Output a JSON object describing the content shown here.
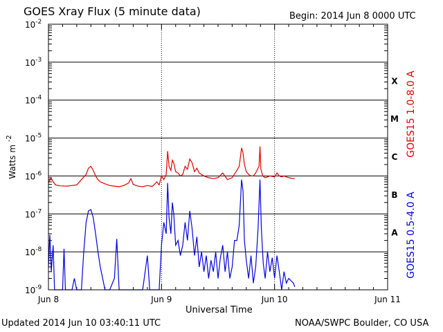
{
  "header": {
    "title": "GOES Xray Flux (5 minute data)",
    "begin": "Begin:  2014 Jun 8 0000 UTC"
  },
  "footer": {
    "updated": "Updated 2014 Jun 10 03:40:11 UTC",
    "credit": "NOAA/SWPC Boulder, CO USA"
  },
  "colors": {
    "long": "#e00000",
    "short": "#0000e0",
    "grid": "#000000"
  },
  "chart_data": {
    "type": "line",
    "title": "GOES Xray Flux (5 minute data)",
    "xlabel": "Universal Time",
    "ylabel": "Watts m-2",
    "ylabel_base": "Watts m",
    "ylabel_exp": "-2",
    "yscale": "log",
    "ylim": [
      1e-09,
      0.01
    ],
    "xlim": [
      0,
      72
    ],
    "x_unit": "hours since 2014 Jun 8 0000 UTC",
    "x_tick_labels": [
      {
        "x": 0,
        "label": "Jun 8"
      },
      {
        "x": 24,
        "label": "Jun 9"
      },
      {
        "x": 48,
        "label": "Jun 10"
      },
      {
        "x": 72,
        "label": "Jun 11"
      }
    ],
    "y_tick_labels": [
      {
        "exp": -2,
        "base": "10",
        "sup": "-2"
      },
      {
        "exp": -3,
        "base": "10",
        "sup": "-3"
      },
      {
        "exp": -4,
        "base": "10",
        "sup": "-4"
      },
      {
        "exp": -5,
        "base": "10",
        "sup": "-5"
      },
      {
        "exp": -6,
        "base": "10",
        "sup": "-6"
      },
      {
        "exp": -7,
        "base": "10",
        "sup": "-7"
      },
      {
        "exp": -8,
        "base": "10",
        "sup": "-8"
      },
      {
        "exp": -9,
        "base": "10",
        "sup": "-9"
      }
    ],
    "flare_classes": [
      {
        "label": "X",
        "exp": -3.5
      },
      {
        "label": "M",
        "exp": -4.5
      },
      {
        "label": "C",
        "exp": -5.5
      },
      {
        "label": "B",
        "exp": -6.5
      },
      {
        "label": "A",
        "exp": -7.5
      }
    ],
    "grid": true,
    "series": [
      {
        "name": "GOES15 1.0-8.0 A",
        "points": [
          [
            0,
            6.5e-07
          ],
          [
            0.5,
            9e-07
          ],
          [
            1.0,
            7e-07
          ],
          [
            1.5,
            5.8e-07
          ],
          [
            2.5,
            5.5e-07
          ],
          [
            4,
            5.4e-07
          ],
          [
            5,
            5.6e-07
          ],
          [
            6,
            5.8e-07
          ],
          [
            7,
            8e-07
          ],
          [
            8,
            1.1e-06
          ],
          [
            8.5,
            1.6e-06
          ],
          [
            9,
            1.8e-06
          ],
          [
            9.5,
            1.4e-06
          ],
          [
            10,
            1e-06
          ],
          [
            10.5,
            8e-07
          ],
          [
            11,
            7e-07
          ],
          [
            12,
            6.2e-07
          ],
          [
            13,
            5.6e-07
          ],
          [
            14,
            5.4e-07
          ],
          [
            15,
            5.2e-07
          ],
          [
            16,
            5.6e-07
          ],
          [
            17,
            6.5e-07
          ],
          [
            17.5,
            8.5e-07
          ],
          [
            18,
            6e-07
          ],
          [
            19,
            5.4e-07
          ],
          [
            20,
            5.2e-07
          ],
          [
            21,
            5.6e-07
          ],
          [
            22,
            5.3e-07
          ],
          [
            22.5,
            6e-07
          ],
          [
            23,
            7e-07
          ],
          [
            23.5,
            5.8e-07
          ],
          [
            24,
            1e-06
          ],
          [
            24.5,
            8e-07
          ],
          [
            25,
            1.1e-06
          ],
          [
            25.3,
            4.5e-06
          ],
          [
            25.6,
            1.8e-06
          ],
          [
            26,
            1.4e-06
          ],
          [
            26.3,
            2.6e-06
          ],
          [
            26.6,
            2.2e-06
          ],
          [
            27,
            1.3e-06
          ],
          [
            27.5,
            1.2e-06
          ],
          [
            28,
            1e-06
          ],
          [
            28.5,
            1.1e-06
          ],
          [
            29,
            1.8e-06
          ],
          [
            29.5,
            1.5e-06
          ],
          [
            30,
            2.8e-06
          ],
          [
            30.5,
            2.2e-06
          ],
          [
            31,
            1.3e-06
          ],
          [
            31.5,
            1.6e-06
          ],
          [
            32,
            1.2e-06
          ],
          [
            33,
            1e-06
          ],
          [
            34,
            9e-07
          ],
          [
            35,
            8.5e-07
          ],
          [
            36,
            9e-07
          ],
          [
            37,
            1.2e-06
          ],
          [
            38,
            8e-07
          ],
          [
            39,
            9e-07
          ],
          [
            40,
            1.4e-06
          ],
          [
            40.5,
            1.8e-06
          ],
          [
            41,
            5.5e-06
          ],
          [
            41.3,
            4e-06
          ],
          [
            41.6,
            2e-06
          ],
          [
            42,
            1.3e-06
          ],
          [
            42.5,
            1.1e-06
          ],
          [
            43,
            1e-06
          ],
          [
            43.5,
            1e-06
          ],
          [
            44,
            1.2e-06
          ],
          [
            44.7,
            1.8e-06
          ],
          [
            44.9,
            6e-06
          ],
          [
            45.1,
            1.5e-06
          ],
          [
            45.5,
            1e-06
          ],
          [
            46,
            9e-07
          ],
          [
            47,
            1e-06
          ],
          [
            48,
            9.5e-07
          ],
          [
            48.5,
            1.2e-06
          ],
          [
            49,
            1e-06
          ],
          [
            49.5,
            9.5e-07
          ],
          [
            50,
            1e-06
          ],
          [
            51,
            9e-07
          ],
          [
            52,
            8.5e-07
          ],
          [
            52.3,
            8.8e-07
          ]
        ]
      },
      {
        "name": "GOES15 0.5-4.0 A",
        "points": [
          [
            0,
            4e-09
          ],
          [
            0.3,
            2.8e-08
          ],
          [
            0.6,
            3e-09
          ],
          [
            1,
            1.5e-08
          ],
          [
            1.3,
            1e-09
          ],
          [
            2,
            1e-09
          ],
          [
            3,
            1e-09
          ],
          [
            3.3,
            1.2e-08
          ],
          [
            3.6,
            1e-09
          ],
          [
            4,
            1e-09
          ],
          [
            5,
            1e-09
          ],
          [
            5.5,
            2e-09
          ],
          [
            6,
            1e-09
          ],
          [
            7,
            1e-09
          ],
          [
            7.5,
            1e-08
          ],
          [
            8,
            6e-08
          ],
          [
            8.5,
            1.2e-07
          ],
          [
            9,
            1.3e-07
          ],
          [
            9.5,
            8e-08
          ],
          [
            10,
            3e-08
          ],
          [
            10.5,
            1e-08
          ],
          [
            11,
            4e-09
          ],
          [
            11.5,
            2e-09
          ],
          [
            12,
            1e-09
          ],
          [
            13,
            1e-09
          ],
          [
            14,
            2e-09
          ],
          [
            14.5,
            2.2e-08
          ],
          [
            15,
            1e-09
          ],
          [
            16,
            1e-09
          ],
          [
            17,
            1e-09
          ],
          [
            18,
            1e-09
          ],
          [
            19,
            1e-09
          ],
          [
            20,
            1e-09
          ],
          [
            21,
            8e-09
          ],
          [
            21.5,
            1e-09
          ],
          [
            22,
            1e-09
          ],
          [
            23,
            1e-09
          ],
          [
            23.5,
            1e-09
          ],
          [
            24,
            1.5e-08
          ],
          [
            24.5,
            6e-08
          ],
          [
            25,
            3e-08
          ],
          [
            25.3,
            6.5e-07
          ],
          [
            25.6,
            8e-08
          ],
          [
            26,
            3e-08
          ],
          [
            26.3,
            2e-07
          ],
          [
            26.6,
            1e-07
          ],
          [
            27,
            1.5e-08
          ],
          [
            27.5,
            2e-08
          ],
          [
            28,
            8e-09
          ],
          [
            28.5,
            1.5e-08
          ],
          [
            29,
            6e-08
          ],
          [
            29.5,
            2e-08
          ],
          [
            30,
            1.2e-07
          ],
          [
            30.5,
            4e-08
          ],
          [
            31,
            8e-09
          ],
          [
            31.5,
            2.5e-08
          ],
          [
            32,
            4e-09
          ],
          [
            32.5,
            1e-08
          ],
          [
            33,
            3e-09
          ],
          [
            33.5,
            8e-09
          ],
          [
            34,
            2e-09
          ],
          [
            34.5,
            6e-09
          ],
          [
            35,
            3e-09
          ],
          [
            35.5,
            1e-08
          ],
          [
            36,
            2e-09
          ],
          [
            36.5,
            7e-09
          ],
          [
            37,
            1.5e-08
          ],
          [
            37.5,
            3e-09
          ],
          [
            38,
            1e-08
          ],
          [
            38.5,
            2e-09
          ],
          [
            39,
            4e-09
          ],
          [
            39.5,
            2e-08
          ],
          [
            40,
            2e-08
          ],
          [
            40.5,
            5e-08
          ],
          [
            41,
            8e-07
          ],
          [
            41.3,
            4e-07
          ],
          [
            41.6,
            2e-08
          ],
          [
            42,
            6e-09
          ],
          [
            42.5,
            2e-09
          ],
          [
            43,
            8e-09
          ],
          [
            43.5,
            1.5e-09
          ],
          [
            44,
            4e-09
          ],
          [
            44.5,
            4e-08
          ],
          [
            44.9,
            8e-07
          ],
          [
            45.2,
            4e-08
          ],
          [
            45.6,
            5e-09
          ],
          [
            46,
            2e-09
          ],
          [
            46.5,
            1e-08
          ],
          [
            47,
            3e-09
          ],
          [
            47.5,
            7e-09
          ],
          [
            48,
            2e-09
          ],
          [
            48.5,
            8e-09
          ],
          [
            49,
            3e-09
          ],
          [
            49.5,
            1e-09
          ],
          [
            50,
            3e-09
          ],
          [
            50.5,
            1.5e-09
          ],
          [
            51,
            2e-09
          ],
          [
            52,
            1.5e-09
          ],
          [
            52.3,
            1.2e-09
          ]
        ]
      }
    ]
  }
}
